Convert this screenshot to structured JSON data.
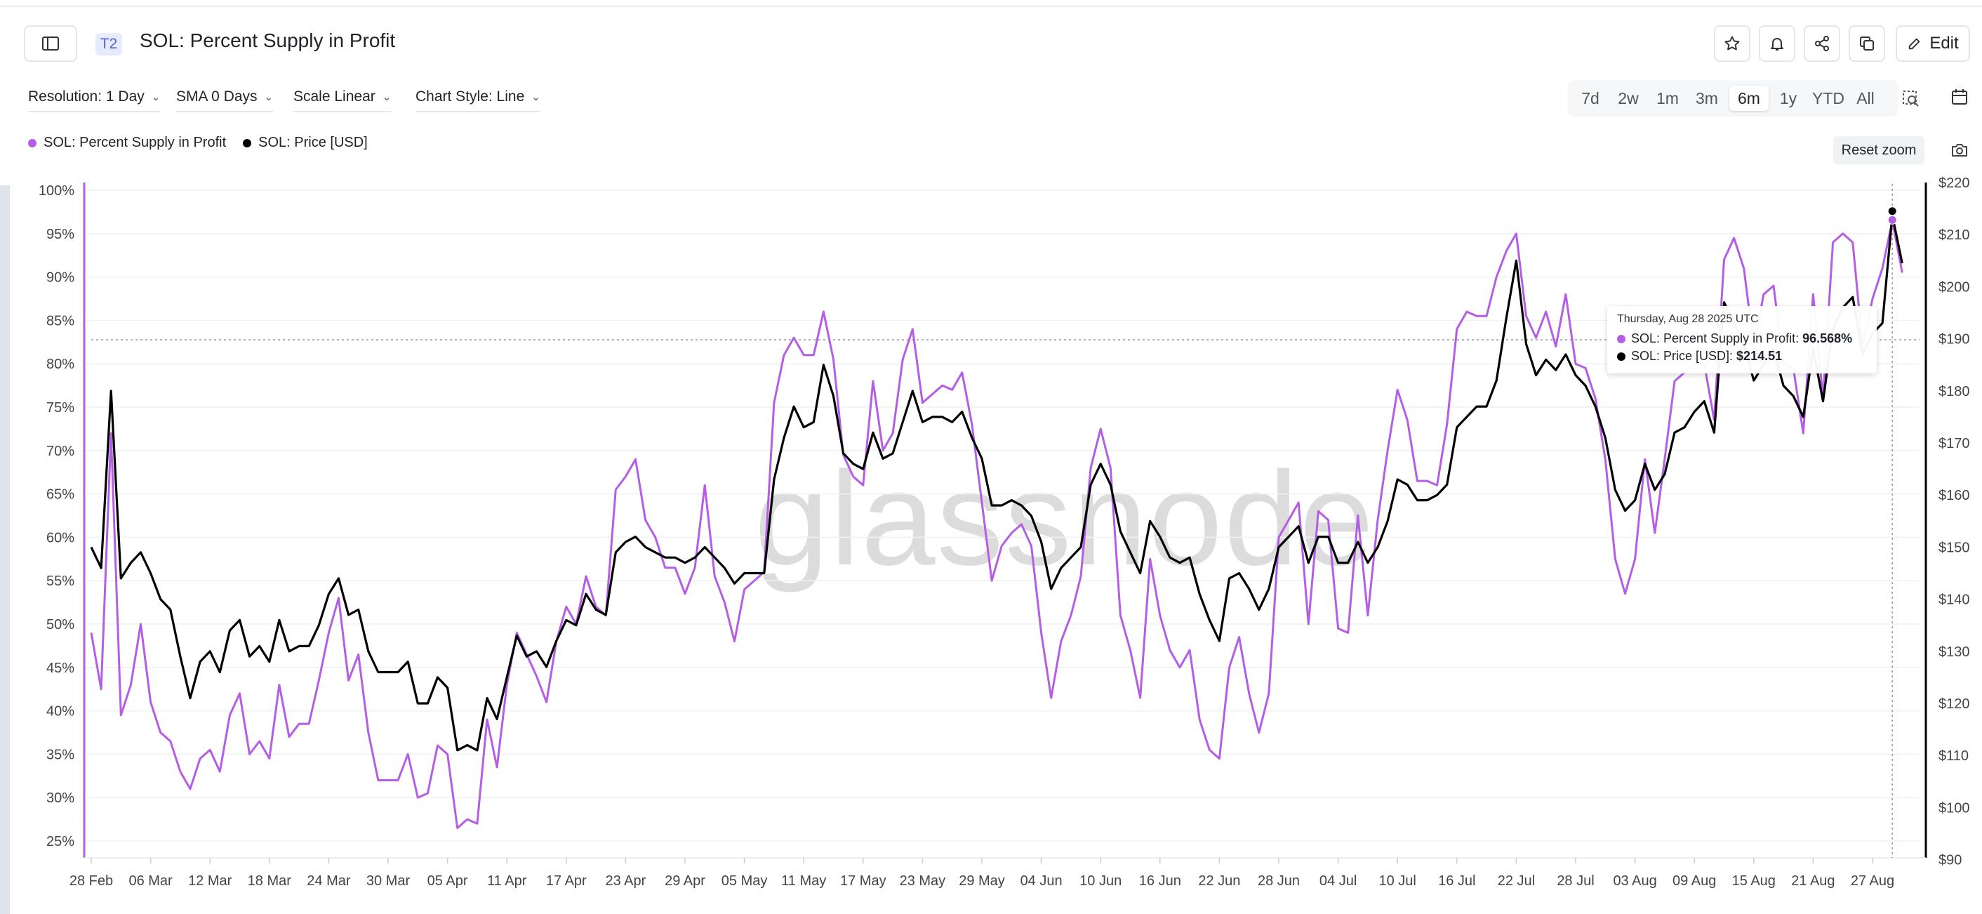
{
  "header": {
    "tag": "T2",
    "title": "SOL: Percent Supply in Profit",
    "edit_label": "Edit",
    "icons": [
      "sidebar-toggle-icon",
      "star-icon",
      "bell-icon",
      "share-icon",
      "copy-icon",
      "pencil-icon"
    ]
  },
  "controls": {
    "resolution": "Resolution: 1 Day",
    "sma": "SMA 0 Days",
    "scale": "Scale Linear",
    "chart_style": "Chart Style: Line",
    "ranges": [
      "7d",
      "2w",
      "1m",
      "3m",
      "6m",
      "1y",
      "YTD",
      "All"
    ],
    "active_range": "6m",
    "reset_zoom": "Reset zoom"
  },
  "legend": [
    {
      "label": "SOL: Percent Supply in Profit",
      "color": "#b45ee6"
    },
    {
      "label": "SOL: Price [USD]",
      "color": "#000000"
    }
  ],
  "watermark": "glassnode",
  "tooltip": {
    "date": "Thursday, Aug 28 2025 UTC",
    "row1_label": "SOL: Percent Supply in Profit: ",
    "row1_value": "96.568%",
    "row2_label": "SOL: Price [USD]: ",
    "row2_value": "$214.51"
  },
  "chart_data": {
    "type": "line",
    "x_tick_labels": [
      "28 Feb",
      "06 Mar",
      "12 Mar",
      "18 Mar",
      "24 Mar",
      "30 Mar",
      "05 Apr",
      "11 Apr",
      "17 Apr",
      "23 Apr",
      "29 Apr",
      "05 May",
      "11 May",
      "17 May",
      "23 May",
      "29 May",
      "04 Jun",
      "10 Jun",
      "16 Jun",
      "22 Jun",
      "28 Jun",
      "04 Jul",
      "10 Jul",
      "16 Jul",
      "22 Jul",
      "28 Jul",
      "03 Aug",
      "09 Aug",
      "15 Aug",
      "21 Aug",
      "27 Aug"
    ],
    "x_tick_step_days": 6,
    "left_axis": {
      "ticks": [
        "100%",
        "95%",
        "90%",
        "85%",
        "80%",
        "75%",
        "70%",
        "65%",
        "60%",
        "55%",
        "50%",
        "45%",
        "40%",
        "35%",
        "30%",
        "25%"
      ],
      "ylim": [
        23,
        100
      ]
    },
    "right_axis": {
      "ticks": [
        "$220",
        "$210",
        "$200",
        "$190",
        "$180",
        "$170",
        "$160",
        "$150",
        "$140",
        "$130",
        "$120",
        "$110",
        "$100",
        "$90"
      ],
      "ylim": [
        90,
        220
      ]
    },
    "series": [
      {
        "name": "SOL: Percent Supply in Profit",
        "axis": "left",
        "color": "#b45ee6",
        "values": [
          49,
          42.5,
          72,
          39.5,
          43,
          50,
          41,
          37.5,
          36.5,
          33,
          31,
          34.5,
          35.5,
          33,
          39.5,
          42,
          35,
          36.5,
          34.5,
          43,
          37,
          38.5,
          38.5,
          43.5,
          49,
          53,
          43.5,
          46.5,
          37.5,
          32,
          32,
          32,
          35,
          30,
          30.5,
          36,
          35,
          26.5,
          27.5,
          27,
          39,
          33.5,
          43,
          49,
          46.5,
          44,
          41,
          48,
          52,
          50,
          55.5,
          52,
          51,
          65.5,
          67,
          69,
          62,
          60,
          56.5,
          56.5,
          53.5,
          56.5,
          66,
          55.5,
          52.5,
          48,
          54,
          55,
          56,
          75.5,
          81,
          83,
          81,
          81,
          86,
          80.5,
          69.5,
          67,
          66,
          78,
          70,
          72,
          80.5,
          84,
          75.5,
          76.5,
          77.5,
          77,
          79,
          73,
          64,
          55,
          59,
          60.5,
          61.5,
          59,
          49,
          41.5,
          48,
          51,
          55.5,
          68,
          72.5,
          68,
          51,
          47,
          41.5,
          57.5,
          51,
          47,
          45,
          47,
          39,
          35.5,
          34.5,
          45,
          48.5,
          42,
          37.5,
          42,
          60,
          62,
          64,
          50,
          63,
          62,
          49.5,
          49,
          62.5,
          51,
          62,
          70,
          77,
          73.5,
          66.5,
          66.5,
          66,
          73,
          84,
          86,
          85.5,
          85.5,
          90,
          93,
          95,
          85.5,
          83,
          86,
          82,
          88,
          80,
          79.5,
          76,
          69,
          57.5,
          53.5,
          57.5,
          69,
          60.5,
          69,
          78,
          79,
          80,
          80,
          73.5,
          92,
          94.5,
          91,
          82,
          88,
          89,
          80,
          79.5,
          72,
          88,
          76,
          94,
          95,
          94,
          82,
          87.5,
          91,
          96.5,
          90.5
        ]
      },
      {
        "name": "SOL: Price [USD]",
        "axis": "right",
        "color": "#000000",
        "values": [
          150,
          146,
          180,
          144,
          147,
          149,
          145,
          140,
          138,
          129,
          121,
          128,
          130,
          126,
          134,
          136,
          129,
          131,
          128,
          136,
          130,
          131,
          131,
          135,
          141,
          144,
          137,
          138,
          130,
          126,
          126,
          126,
          128,
          120,
          120,
          125,
          123,
          111,
          112,
          111,
          121,
          117,
          125,
          133,
          129,
          130,
          127,
          132,
          136,
          135,
          141,
          138,
          137,
          149,
          151,
          152,
          150,
          149,
          148,
          148,
          147,
          148,
          150,
          148,
          146,
          143,
          145,
          145,
          145,
          163,
          171,
          177,
          173,
          174,
          185,
          179,
          168,
          166,
          165,
          172,
          167,
          168,
          174,
          180,
          174,
          175,
          175,
          174,
          176,
          171,
          167,
          158,
          158,
          159,
          158,
          156,
          151,
          142,
          146,
          148,
          150,
          162,
          166,
          162,
          153,
          149,
          145,
          155,
          152,
          148,
          147,
          148,
          141,
          136,
          132,
          144,
          145,
          142,
          138,
          142,
          150,
          152,
          154,
          147,
          152,
          152,
          147,
          147,
          151,
          147,
          150,
          155,
          163,
          162,
          159,
          159,
          160,
          162,
          173,
          175,
          177,
          177,
          182,
          194,
          205,
          189,
          183,
          186,
          184,
          187,
          183,
          181,
          177,
          171,
          161,
          157,
          159,
          166,
          161,
          164,
          172,
          173,
          176,
          178,
          172,
          197,
          193,
          189,
          182,
          185,
          188,
          181,
          179,
          175,
          188,
          178,
          192,
          196,
          198,
          187,
          191,
          193,
          213.7,
          204.5
        ]
      }
    ],
    "highlight_point": {
      "date": "Aug 28 2025",
      "percent": 96.568,
      "price": 214.51
    },
    "grid": true,
    "legend_position": "top-left"
  }
}
